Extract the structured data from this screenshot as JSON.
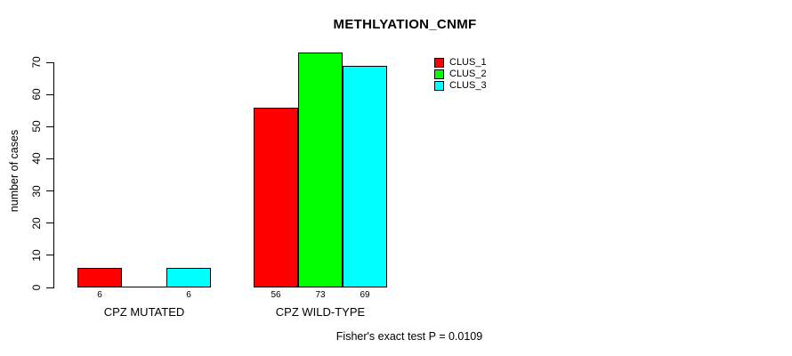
{
  "title": "METHLYATION_CNMF",
  "y_axis": {
    "label": "number of cases",
    "ticks": [
      0,
      10,
      20,
      30,
      40,
      50,
      60,
      70
    ]
  },
  "annotation": "Fisher's exact test P = 0.0109",
  "legend": {
    "entries": [
      {
        "label": "CLUS_1",
        "color": "#ff0000"
      },
      {
        "label": "CLUS_2",
        "color": "#00ff00"
      },
      {
        "label": "CLUS_3",
        "color": "#00ffff"
      }
    ],
    "position": "top-right"
  },
  "chart_data": {
    "type": "bar",
    "title": "METHLYATION_CNMF",
    "xlabel": "",
    "ylabel": "number of cases",
    "categories": [
      "CPZ MUTATED",
      "CPZ WILD-TYPE"
    ],
    "series": [
      {
        "name": "CLUS_1",
        "color": "#ff0000",
        "values": [
          6,
          56
        ]
      },
      {
        "name": "CLUS_2",
        "color": "#00ff00",
        "values": [
          0,
          73
        ]
      },
      {
        "name": "CLUS_3",
        "color": "#00ffff",
        "values": [
          6,
          69
        ]
      }
    ],
    "bar_value_labels": [
      [
        "6",
        "",
        "6"
      ],
      [
        "56",
        "73",
        "69"
      ]
    ],
    "ylim": [
      0,
      73
    ],
    "yticks": [
      0,
      10,
      20,
      30,
      40,
      50,
      60,
      70
    ],
    "grid": false,
    "legend_position": "top-right",
    "annotation": "Fisher's exact test P = 0.0109",
    "background_color": "#ffffff",
    "bar_border_color": "#000000"
  }
}
